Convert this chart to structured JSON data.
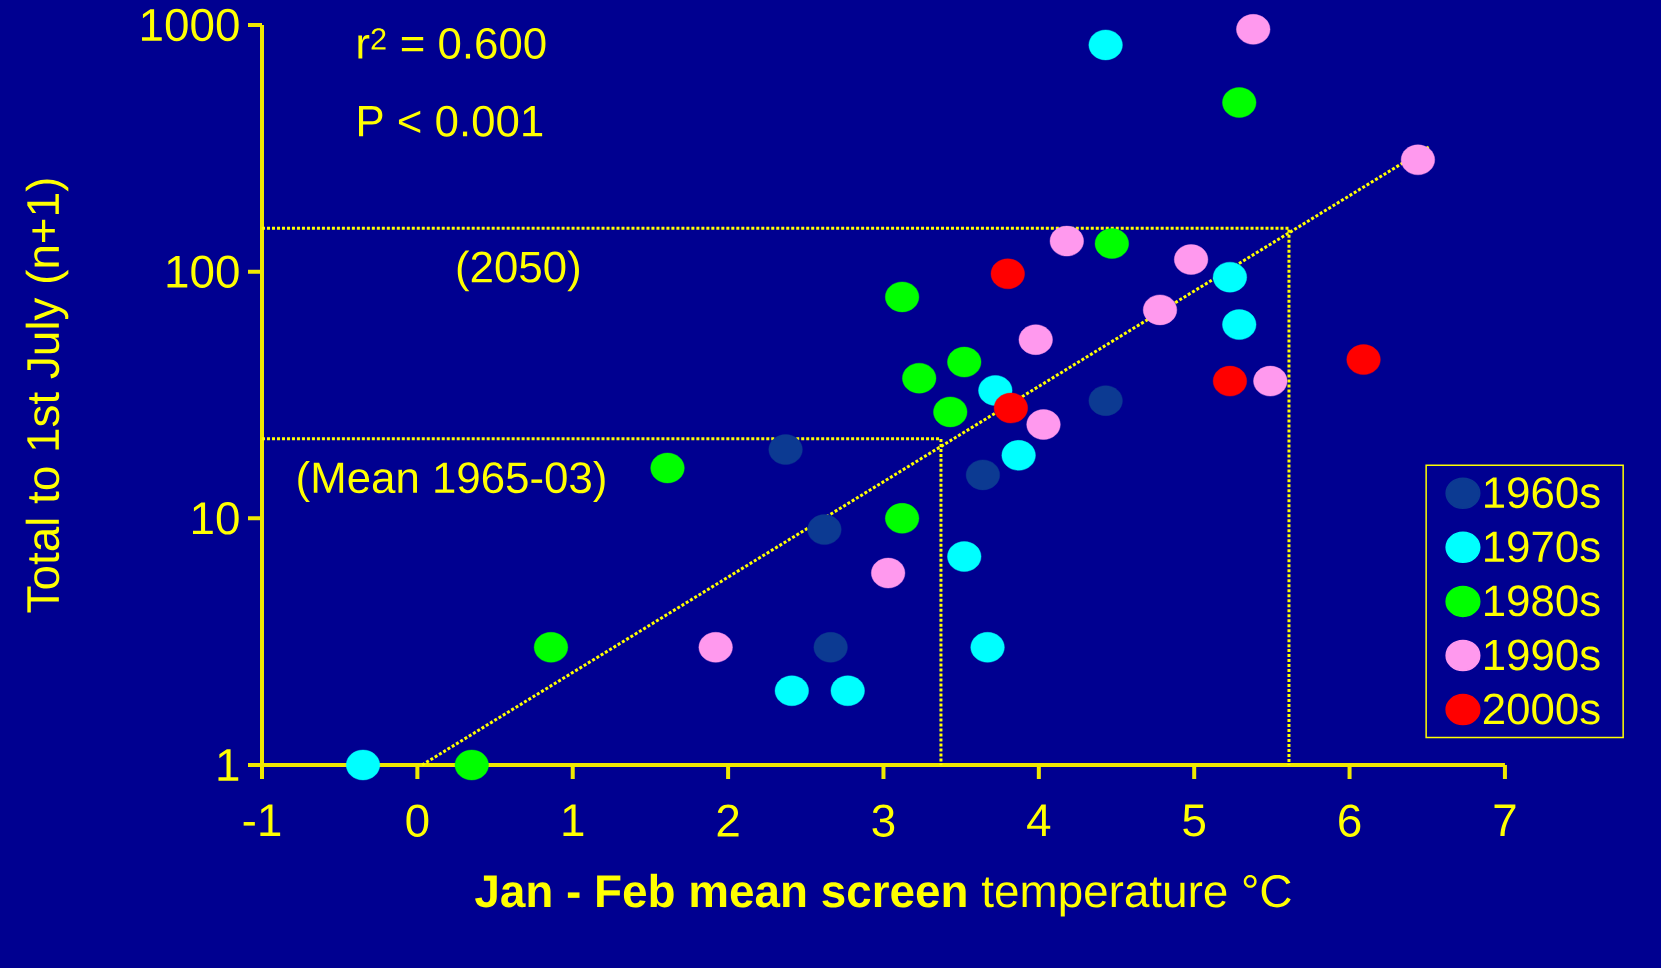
{
  "chart_data": {
    "type": "scatter",
    "xlabel": "**Jan - Feb mean screen** temperature °C",
    "ylabel": "Total to 1st July (n+1)",
    "log": "y",
    "legend": "right",
    "xlim": [
      -1,
      7
    ],
    "ylim": [
      1,
      1000
    ],
    "xticks": [
      -1,
      0,
      1,
      2,
      3,
      4,
      5,
      6,
      7
    ],
    "yticks": [
      1,
      10,
      100,
      1000
    ],
    "series": [
      {
        "name": "1960s",
        "color": "#0c3a92",
        "marker": "circle",
        "x": [
          2.37,
          2.62,
          2.66,
          3.64,
          4.43
        ],
        "values": [
          19,
          9,
          3,
          15,
          30
        ]
      },
      {
        "name": "1970s",
        "color": "#00ffff",
        "marker": "circle",
        "x": [
          -0.35,
          2.41,
          2.77,
          3.67,
          3.52,
          3.87,
          3.72,
          5.23,
          5.29,
          4.43
        ],
        "values": [
          1,
          2,
          2,
          3,
          7,
          18,
          33,
          95,
          61,
          830
        ]
      },
      {
        "name": "1980s",
        "color": "#00ff00",
        "marker": "circle",
        "x": [
          0.35,
          0.86,
          1.61,
          3.12,
          3.23,
          3.52,
          3.43,
          3.12,
          4.47,
          5.29
        ],
        "values": [
          1,
          3,
          16,
          79,
          37,
          43,
          27,
          10,
          130,
          485
        ]
      },
      {
        "name": "1990s",
        "color": "#ff99ee",
        "marker": "circle",
        "x": [
          1.92,
          3.03,
          3.98,
          4.03,
          4.18,
          4.78,
          4.98,
          5.49,
          5.38,
          6.44
        ],
        "values": [
          3,
          6,
          53,
          24,
          133,
          70,
          112,
          36,
          960,
          284
        ]
      },
      {
        "name": "2000s",
        "color": "#ff0000",
        "marker": "circle",
        "x": [
          3.8,
          3.82,
          5.23,
          6.09
        ],
        "values": [
          98,
          28,
          36,
          44
        ]
      },
      {
        "type": "line",
        "color": "#ffff00",
        "line_style": "dotted",
        "marker": "none",
        "x": [
          0.03,
          6.52
        ],
        "values": [
          1,
          323
        ]
      },
      {
        "type": "line",
        "color": "#ffff00",
        "line_style": "dotted",
        "marker": "none",
        "x": [
          -1,
          5.61,
          5.61
        ],
        "values": [
          150,
          150,
          1
        ]
      },
      {
        "type": "line",
        "color": "#ffff00",
        "line_style": "dotted",
        "marker": "none",
        "x": [
          -1,
          3.37,
          3.37
        ],
        "values": [
          21,
          21,
          1
        ]
      }
    ],
    "annotations": [
      "r$^{2}$ = 0.600",
      "P < 0.001",
      {
        "text": "(2050)",
        "x": 0.65,
        "y": 150
      },
      {
        "text": "(Mean 1965-03)",
        "x": 0.22,
        "y": 21
      }
    ]
  }
}
